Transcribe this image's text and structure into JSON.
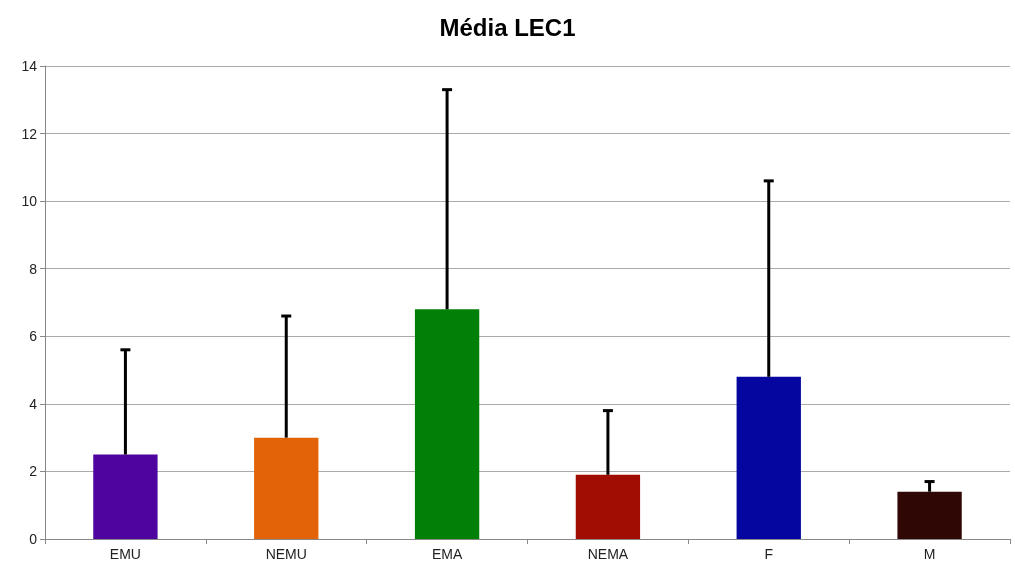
{
  "chart_data": {
    "type": "bar",
    "title": "Média LEC1",
    "categories": [
      "EMU",
      "NEMU",
      "EMA",
      "NEMA",
      "F",
      "M"
    ],
    "values": [
      2.5,
      3.0,
      6.8,
      1.9,
      4.8,
      1.4
    ],
    "colors": [
      "#4f04a0",
      "#e26308",
      "#027f07",
      "#a10d02",
      "#0505a0",
      "#2f0705"
    ],
    "errors": [
      [
        2.5,
        5.6
      ],
      [
        3.0,
        6.6
      ],
      [
        6.8,
        13.3
      ],
      [
        1.9,
        3.8
      ],
      [
        4.8,
        10.6
      ],
      [
        1.4,
        1.7
      ]
    ],
    "ylim": [
      0,
      14
    ],
    "yticks": [
      0,
      2,
      4,
      6,
      8,
      10,
      12,
      14
    ],
    "grid": "y"
  }
}
